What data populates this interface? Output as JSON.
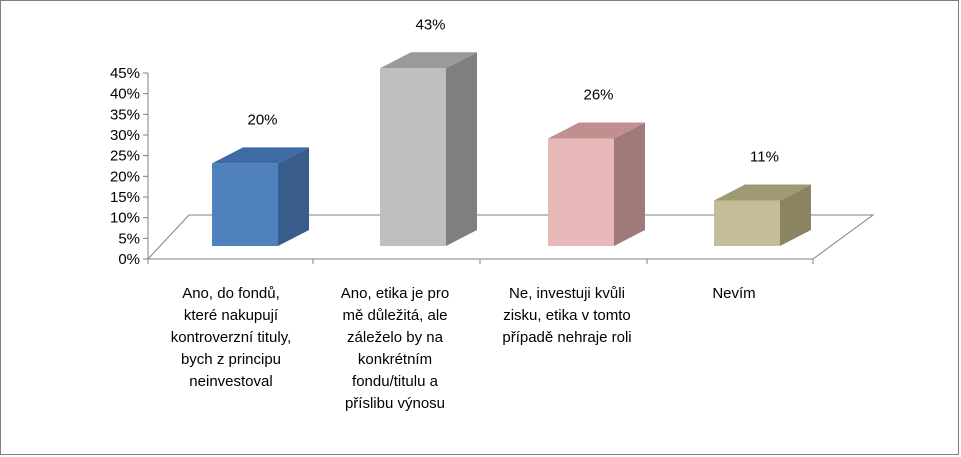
{
  "chart_data": {
    "type": "bar",
    "style": "3d-column",
    "categories": [
      "Ano, do fondů,\nkteré nakupují\nkontroverzní tituly,\nbych z principu\nneinvestoval",
      "Ano, etika je pro\nmě důležitá, ale\nzáleželo by na\nkonkrétním\nfondu/titulu a\npříslibu výnosu",
      "Ne, investuji kvůli\nzisku, etika v tomto\npřípadě nehraje roli",
      "Nevím"
    ],
    "values": [
      0.2,
      0.43,
      0.26,
      0.11
    ],
    "data_labels": [
      "20%",
      "43%",
      "26%",
      "11%"
    ],
    "y_ticks": [
      "0%",
      "5%",
      "10%",
      "15%",
      "20%",
      "25%",
      "30%",
      "35%",
      "40%",
      "45%"
    ],
    "ylim": [
      0,
      0.45
    ],
    "colors": [
      {
        "front": "#4f81bd",
        "side": "#385d8a",
        "top": "#3e6aa6"
      },
      {
        "front": "#bfbfbf",
        "side": "#7f7f7f",
        "top": "#9a9a9a"
      },
      {
        "front": "#e6b9b8",
        "side": "#a07a79",
        "top": "#c08f8e"
      },
      {
        "front": "#c4bd97",
        "side": "#8a8462",
        "top": "#a09a74"
      }
    ],
    "grid": false,
    "legend": "none"
  }
}
